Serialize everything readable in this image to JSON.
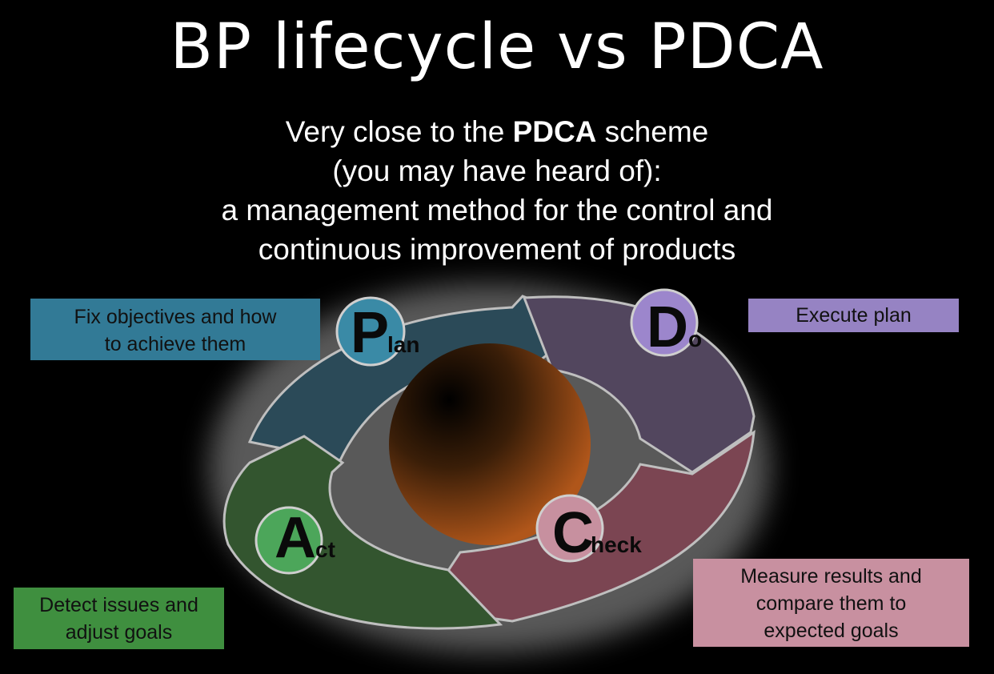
{
  "title": "BP lifecycle vs PDCA",
  "subtitle": {
    "line1_before": "Very close to the ",
    "line1_bold": "PDCA",
    "line1_after": " scheme",
    "line2": "(you may have heard of):",
    "line3": "a management method for the control and",
    "line4": "continuous improvement of products"
  },
  "cycle": {
    "plan": {
      "letter": "P",
      "rest": "lan",
      "color": "#3a8aa6",
      "arrow_color": "#2b4a58"
    },
    "do": {
      "letter": "D",
      "rest": "o",
      "color": "#9c86cc",
      "arrow_color": "#52465e"
    },
    "check": {
      "letter": "C",
      "rest": "heck",
      "color": "#c7909f",
      "arrow_color": "#7b4552"
    },
    "act": {
      "letter": "A",
      "rest": "ct",
      "color": "#4ca65a",
      "arrow_color": "#33552f"
    }
  },
  "boxes": {
    "plan": {
      "line1": "Fix objectives and how",
      "line2": "to achieve them"
    },
    "do": {
      "line1": "Execute plan"
    },
    "act": {
      "line1": "Detect issues and",
      "line2": "adjust goals"
    },
    "check": {
      "line1": "Measure results and",
      "line2": "compare them to",
      "line3": "expected goals"
    }
  }
}
